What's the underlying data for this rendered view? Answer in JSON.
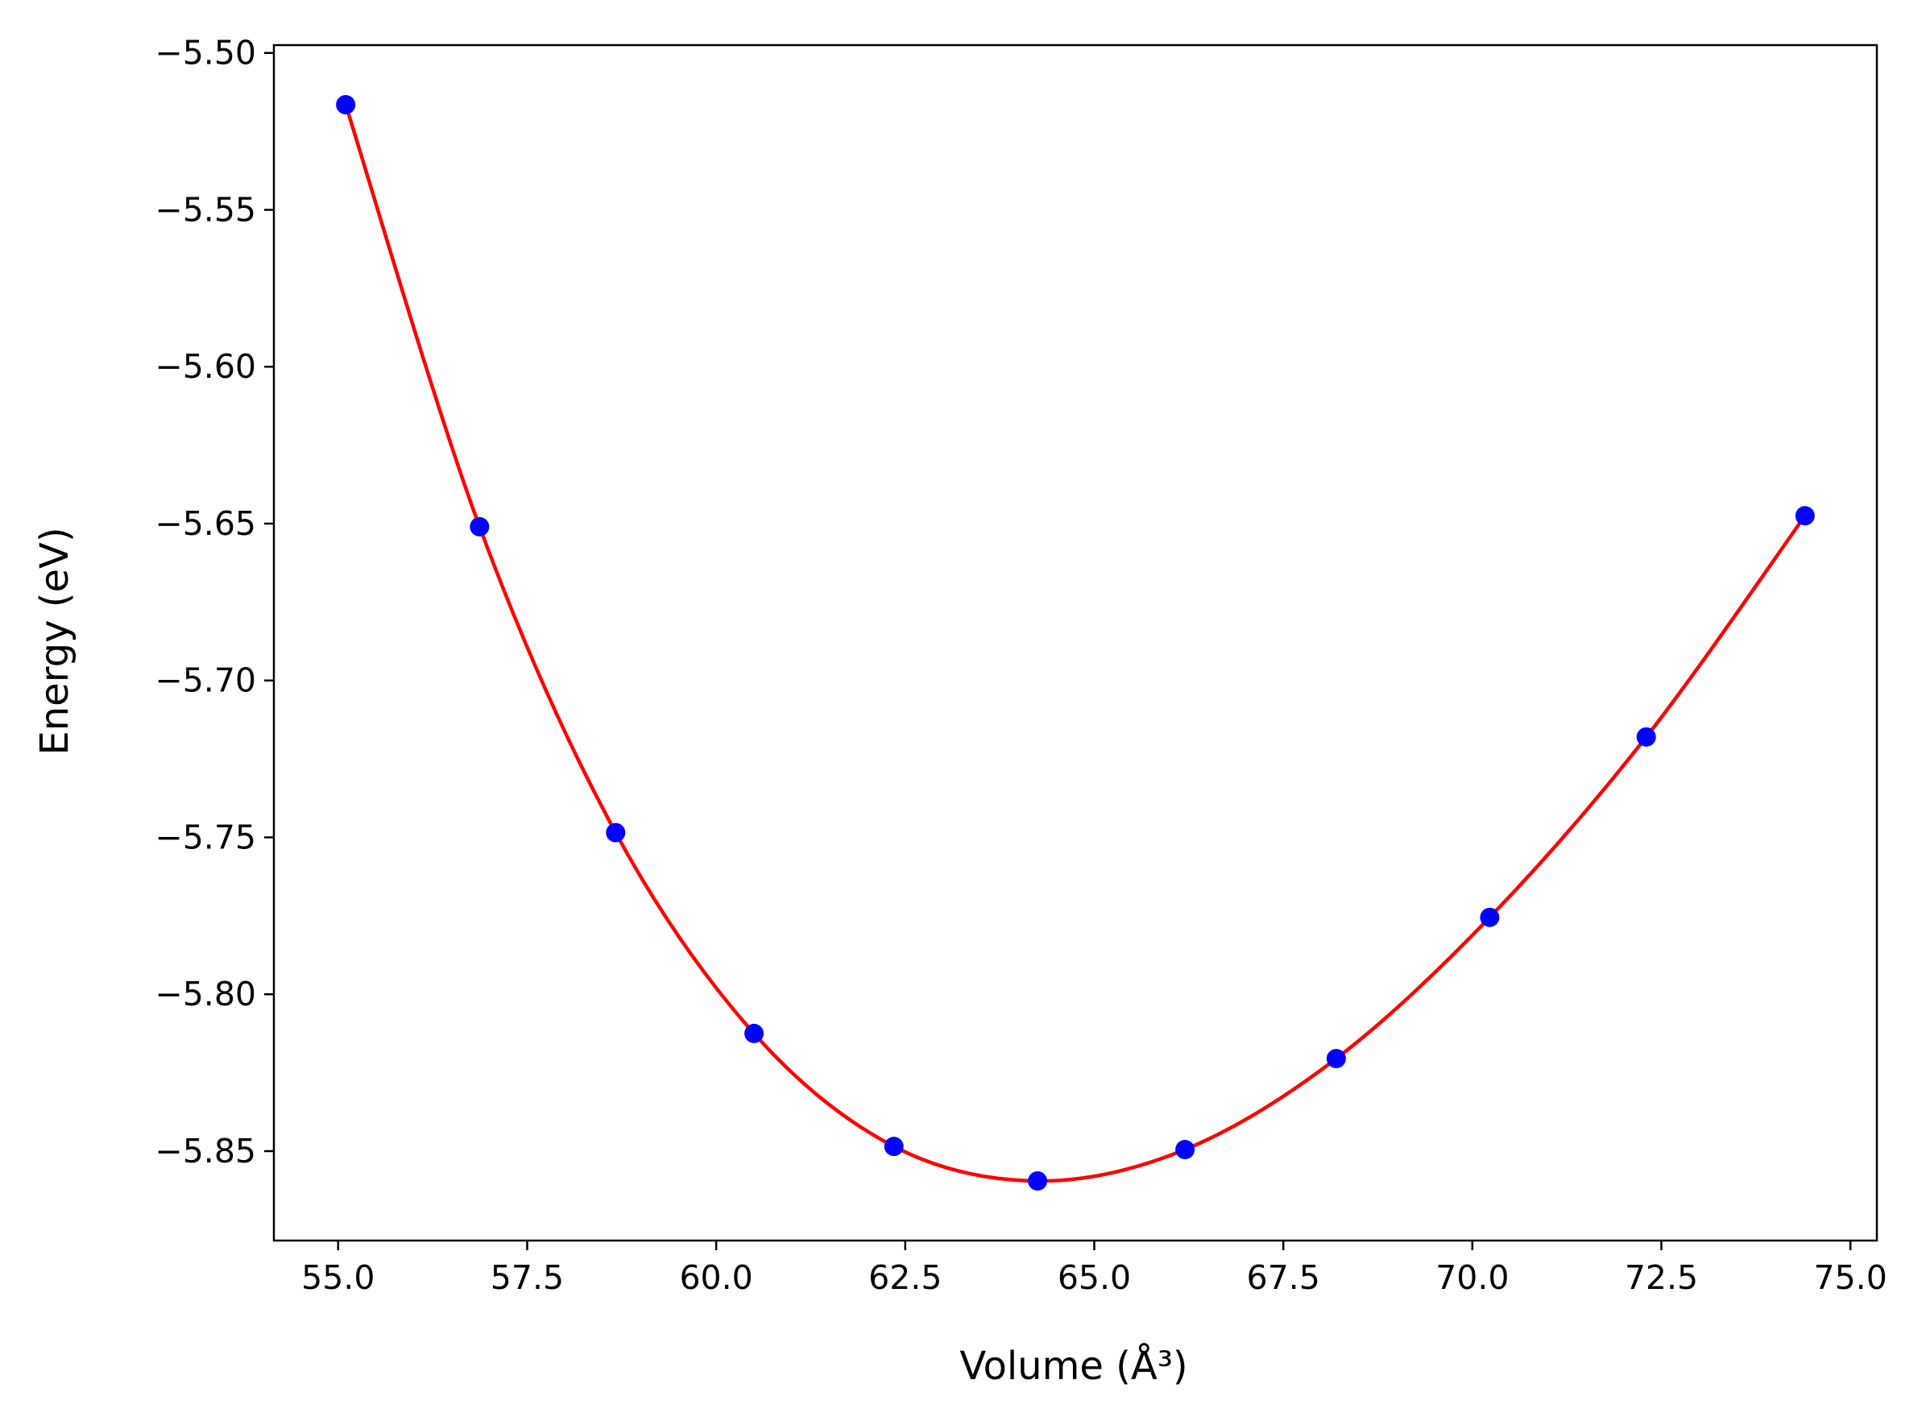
{
  "chart_data": {
    "type": "scatter",
    "title": "",
    "xlabel": "Volume (Å³)",
    "ylabel": "Energy (eV)",
    "xlim": [
      54.15,
      75.35
    ],
    "ylim": [
      -5.8785,
      -5.4975
    ],
    "xticks": [
      55.0,
      57.5,
      60.0,
      62.5,
      65.0,
      67.5,
      70.0,
      72.5,
      75.0
    ],
    "xtick_labels": [
      "55.0",
      "57.5",
      "60.0",
      "62.5",
      "65.0",
      "67.5",
      "70.0",
      "72.5",
      "75.0"
    ],
    "yticks": [
      -5.5,
      -5.55,
      -5.6,
      -5.65,
      -5.7,
      -5.75,
      -5.8,
      -5.85
    ],
    "ytick_labels": [
      "−5.50",
      "−5.55",
      "−5.60",
      "−5.65",
      "−5.70",
      "−5.75",
      "−5.80",
      "−5.85"
    ],
    "grid": false,
    "legend": "none",
    "series": [
      {
        "type": "scatter",
        "color": "#0000ff",
        "x": [
          55.1,
          56.87,
          58.67,
          60.5,
          62.35,
          64.25,
          66.2,
          68.2,
          70.23,
          72.3,
          74.4
        ],
        "y": [
          -5.5165,
          -5.651,
          -5.7485,
          -5.8125,
          -5.8485,
          -5.8595,
          -5.8495,
          -5.8205,
          -5.7755,
          -5.718,
          -5.6475
        ]
      },
      {
        "type": "line",
        "color": "#ff0000",
        "x": [
          55.1,
          56.87,
          58.67,
          60.5,
          62.35,
          64.25,
          66.2,
          68.2,
          70.23,
          72.3,
          74.4
        ],
        "y": [
          -5.5165,
          -5.651,
          -5.7485,
          -5.8125,
          -5.8485,
          -5.8595,
          -5.8495,
          -5.8205,
          -5.7755,
          -5.718,
          -5.6475
        ]
      }
    ]
  }
}
